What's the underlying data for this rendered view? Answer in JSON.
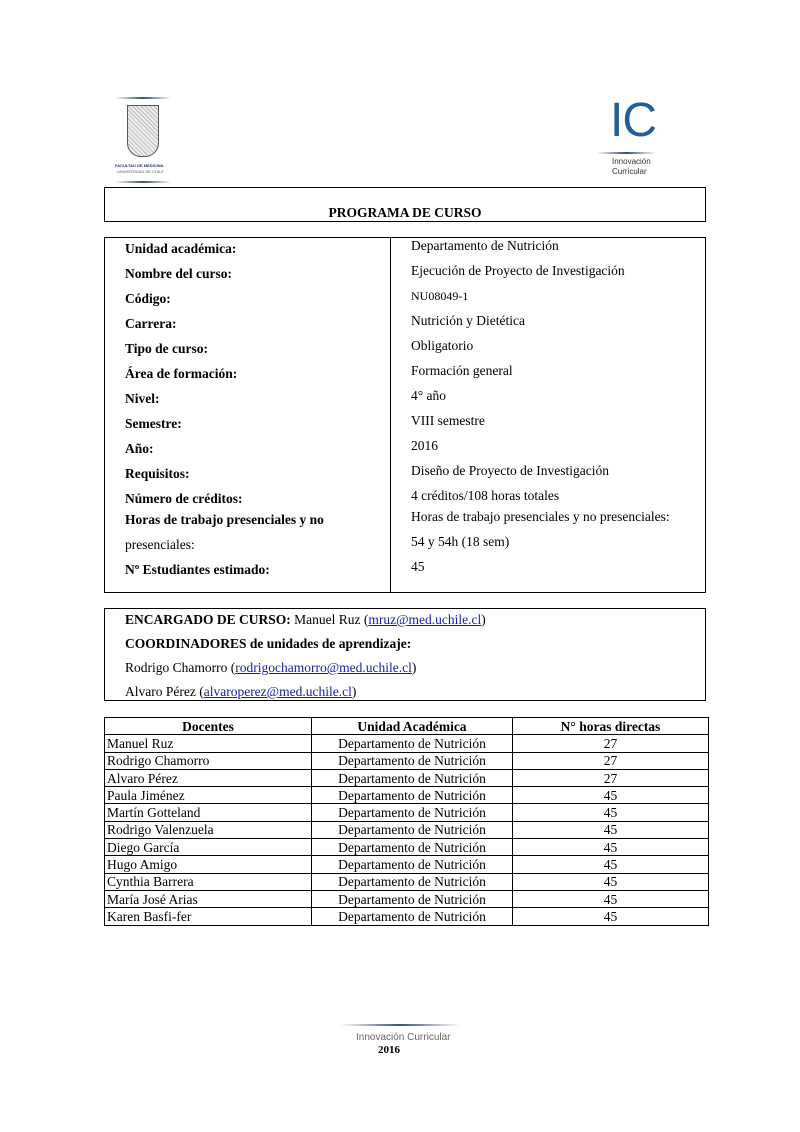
{
  "logos": {
    "left": {
      "text": "FACULTAD DE MEDICINA",
      "subtext": "UNIVERSIDAD DE CHILE"
    },
    "right": {
      "mark": "IC",
      "line1": "Innovación",
      "line2": "Curricular"
    }
  },
  "header": {
    "title": "PROGRAMA DE CURSO"
  },
  "info": [
    {
      "label": "Unidad académica:",
      "value": "Departamento de Nutrición"
    },
    {
      "label": "Nombre del curso:",
      "value": "Ejecución de Proyecto de Investigación"
    },
    {
      "label": "Código:",
      "value": "NU08049-1"
    },
    {
      "label": "Carrera:",
      "value": "Nutrición y Dietética"
    },
    {
      "label": "Tipo de curso:",
      "value": "Obligatorio"
    },
    {
      "label": "Área de formación:",
      "value": "Formación general"
    },
    {
      "label": "Nivel:",
      "value": "4° año"
    },
    {
      "label": "Semestre:",
      "value": "VIII semestre"
    },
    {
      "label": "Año:",
      "value": "2016"
    },
    {
      "label": "Requisitos:",
      "value": "Diseño de Proyecto de Investigación"
    },
    {
      "label": "Número de créditos:",
      "value": "4 créditos/108 horas totales"
    },
    {
      "label": "Horas de trabajo presenciales y no",
      "value": "Horas de trabajo presenciales y no presenciales:"
    },
    {
      "label": "presenciales:",
      "value": "54 y 54h (18 sem)"
    },
    {
      "label": "Nº Estudiantes estimado:",
      "value": "45"
    }
  ],
  "staff": {
    "encargado_label": "ENCARGADO DE CURSO:",
    "encargado_name": "Manuel Ruz (",
    "encargado_email": "mruz@med.uchile.cl",
    "close": ")",
    "coord_label": "COORDINADORES",
    "coord_rest": " de unidades de aprendizaje:",
    "coordinators": [
      {
        "name": "Rodrigo Chamorro (",
        "email": "rodrigochamorro@med.uchile.cl"
      },
      {
        "name": "Alvaro Pérez (",
        "email": "alvaroperez@med.uchile.cl"
      }
    ]
  },
  "docentes": {
    "headers": [
      "Docentes",
      "Unidad Académica",
      "N° horas directas"
    ],
    "rows": [
      [
        "Manuel Ruz",
        "Departamento de Nutrición",
        "27"
      ],
      [
        "Rodrigo Chamorro",
        "Departamento de Nutrición",
        "27"
      ],
      [
        "Alvaro Pérez",
        "Departamento de Nutrición",
        "27"
      ],
      [
        "Paula Jiménez",
        "Departamento de Nutrición",
        "45"
      ],
      [
        "Martín Gotteland",
        "Departamento de Nutrición",
        "45"
      ],
      [
        "Rodrigo Valenzuela",
        "Departamento de Nutrición",
        "45"
      ],
      [
        "Diego García",
        "Departamento de Nutrición",
        "45"
      ],
      [
        "Hugo Amigo",
        "Departamento de Nutrición",
        "45"
      ],
      [
        "Cynthia Barrera",
        "Departamento de Nutrición",
        "45"
      ],
      [
        "María José Arias",
        "Departamento de Nutrición",
        "45"
      ],
      [
        "Karen Basfi-fer",
        "Departamento de Nutrición",
        "45"
      ]
    ]
  },
  "footer": {
    "text": "Innovación Curricular",
    "year": "2016"
  }
}
